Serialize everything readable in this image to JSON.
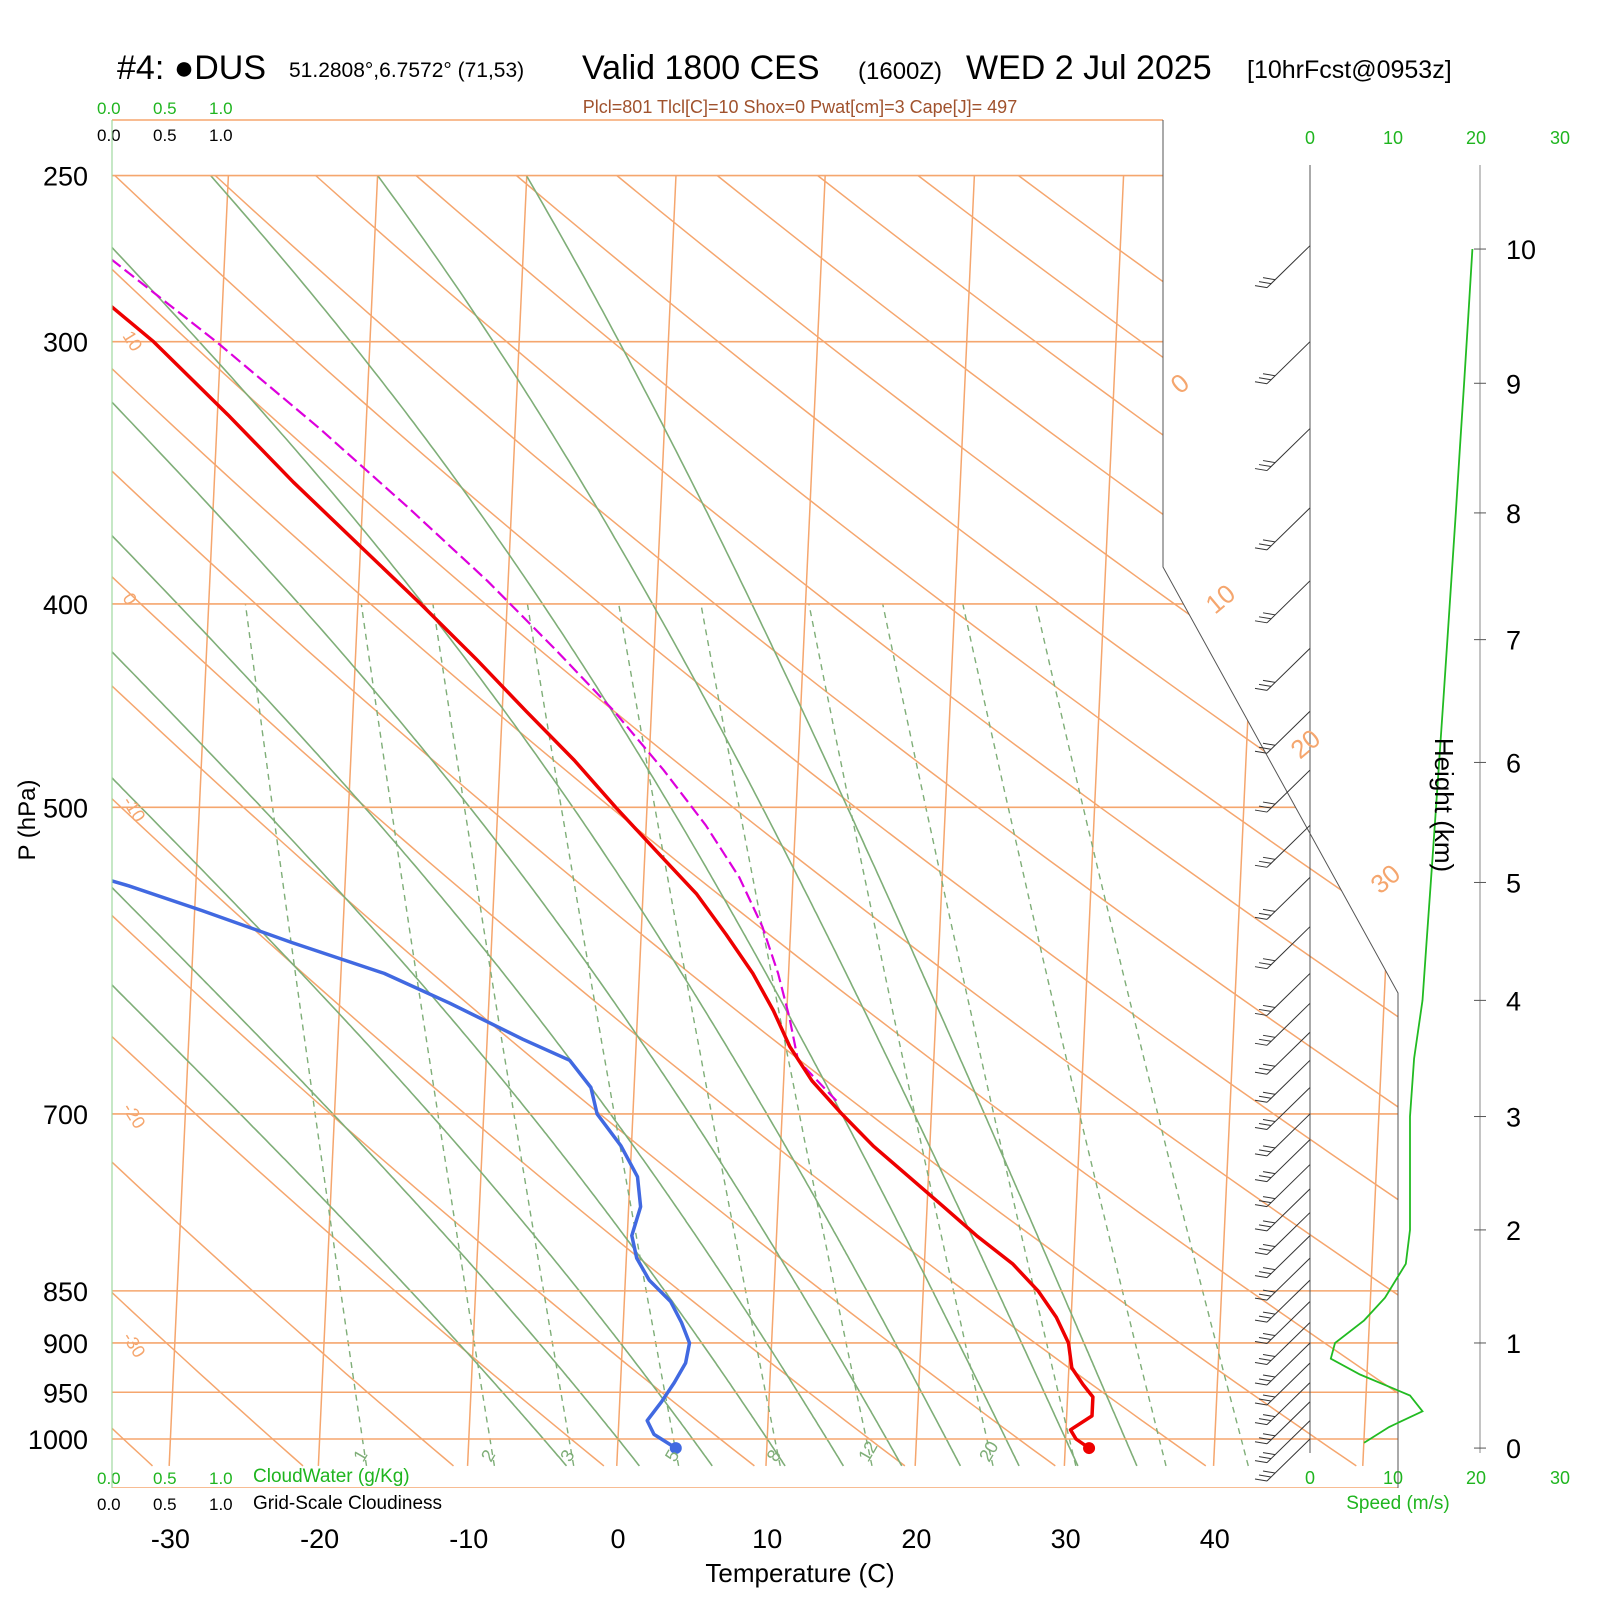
{
  "header": {
    "station": "#4: ●DUS",
    "coords": "51.2808°,6.7572° (71,53)",
    "valid": "Valid 1800 CES",
    "utc": "(1600Z)",
    "date": "WED 2 Jul 2025",
    "forecast": "[10hrFcst@0953z]",
    "indices": "Plcl=801 Tlcl[C]=10 Shox=0 Pwat[cm]=3 Cape[J]= 497"
  },
  "scales": {
    "cloudwater_ticks": [
      "0.0",
      "0.5",
      "1.0"
    ],
    "cloudiness_ticks": [
      "0.0",
      "0.5",
      "1.0"
    ],
    "cloudwater_label": "CloudWater (g/Kg)",
    "cloudiness_label": "Grid-Scale Cloudiness",
    "speed_ticks": [
      "0",
      "10",
      "20",
      "30"
    ],
    "speed_label": "Speed (m/s)"
  },
  "chart_data": {
    "type": "line",
    "subtype": "skew-t log-p sounding",
    "xlabel": "Temperature (C)",
    "ylabel": "P (hPa)",
    "height_label": "Height (km)",
    "xlim": [
      -34,
      36
    ],
    "ylim": [
      1030,
      250
    ],
    "x_ticks": [
      -30,
      -20,
      -10,
      0,
      10,
      20,
      30,
      40
    ],
    "pressure_ticks": [
      250,
      300,
      400,
      500,
      700,
      850,
      900,
      950,
      1000
    ],
    "height_ticks": [
      0,
      1,
      2,
      3,
      4,
      5,
      6,
      7,
      8,
      9,
      10
    ],
    "height_pressures": [
      1010,
      900,
      795,
      702,
      618,
      543,
      476,
      416,
      362,
      314,
      271
    ],
    "isotherm_labels": [
      10,
      0,
      -10,
      -20,
      -30
    ],
    "skewed_isotherm_labels": [
      0,
      10,
      20,
      30
    ],
    "mixing_ratio_labels": [
      1,
      2,
      3,
      5,
      8,
      12,
      20
    ],
    "mixing_ratios": [
      1,
      2,
      3,
      5,
      8,
      12,
      20,
      28,
      40,
      55
    ],
    "dry_adiabats_theta_K": [
      240,
      250,
      260,
      270,
      280,
      290,
      300,
      310,
      320,
      330,
      340,
      350,
      360,
      370,
      380,
      390,
      400,
      410,
      420,
      430,
      440
    ],
    "moist_adiabats_thetaw_C": [
      -5,
      0,
      5,
      10,
      14,
      18,
      22,
      26,
      30,
      34
    ],
    "series": [
      {
        "name": "Temperature",
        "color": "#ee0000",
        "p": [
          1010,
          1000,
          990,
          975,
          955,
          942,
          925,
          900,
          875,
          850,
          825,
          800,
          775,
          750,
          725,
          700,
          675,
          650,
          625,
          600,
          575,
          550,
          525,
          500,
          475,
          450,
          425,
          400,
          375,
          350,
          325,
          300,
          285,
          270
        ],
        "t": [
          31.6,
          30.7,
          30.3,
          31.7,
          31.7,
          31.0,
          30.2,
          29.9,
          29.0,
          27.7,
          25.9,
          23.4,
          21.1,
          18.7,
          16.2,
          14.0,
          11.9,
          10.3,
          9.1,
          7.6,
          5.7,
          3.6,
          0.8,
          -2.1,
          -5.0,
          -8.4,
          -11.9,
          -15.8,
          -20.1,
          -24.7,
          -29.3,
          -34.5,
          -38.4,
          -42.4
        ]
      },
      {
        "name": "Dewpoint",
        "color": "#4169e1",
        "p": [
          1010,
          995,
          980,
          960,
          940,
          920,
          900,
          880,
          860,
          840,
          820,
          800,
          775,
          750,
          725,
          700,
          680,
          660,
          645,
          620,
          600,
          580,
          560,
          545,
          530,
          505,
          480,
          460,
          440,
          420,
          400,
          380,
          360,
          340,
          320,
          300,
          290,
          270
        ],
        "t": [
          3.9,
          2.4,
          1.9,
          2.8,
          3.6,
          4.3,
          4.5,
          3.9,
          3.1,
          1.6,
          0.7,
          0.3,
          0.8,
          0.5,
          -0.7,
          -2.4,
          -2.9,
          -4.4,
          -7.6,
          -12.6,
          -17.1,
          -23.4,
          -29.5,
          -34.5,
          -40.4,
          -48.0,
          -51.1,
          -53.6,
          -55.9,
          -58.3,
          -60.8,
          -63.7,
          -66.8,
          -70.1,
          -73.7,
          -77.6,
          -80.3,
          -84.9
        ]
      },
      {
        "name": "Parcel",
        "color": "#dd00dd",
        "p": [
          690,
          660,
          630,
          600,
          570,
          540,
          510,
          480,
          450,
          420,
          390,
          360,
          330,
          300,
          270
        ],
        "t": [
          13.6,
          10.9,
          10.2,
          9.3,
          8.1,
          6.4,
          4.0,
          1.0,
          -2.5,
          -6.7,
          -11.4,
          -16.9,
          -23.1,
          -30.3,
          -38.8
        ]
      }
    ],
    "surface_markers": {
      "temperature": 31.6,
      "dewpoint": 3.9,
      "p": 1010
    },
    "wind_speed_profile": {
      "h_km": [
        0.05,
        0.2,
        0.35,
        0.5,
        0.7,
        0.85,
        1.0,
        1.2,
        1.4,
        1.7,
        2.0,
        2.5,
        3.0,
        3.5,
        4.0,
        4.5,
        5.0,
        5.5,
        6.0,
        6.5,
        7.0,
        7.5,
        8.0,
        8.5,
        9.0,
        9.5,
        10.0
      ],
      "speed_ms": [
        6.5,
        9.5,
        13.5,
        12.0,
        6.0,
        2.5,
        3.0,
        6.5,
        9.0,
        11.5,
        12.0,
        12.0,
        12.0,
        12.5,
        13.5,
        14.0,
        14.5,
        15.0,
        15.5,
        16.0,
        16.5,
        17.0,
        17.5,
        18.0,
        18.5,
        19.0,
        19.5
      ]
    },
    "wind_barb_levels": [
      1000,
      980,
      960,
      940,
      920,
      900,
      880,
      860,
      840,
      820,
      800,
      780,
      760,
      740,
      720,
      700,
      680,
      660,
      640,
      620,
      600,
      570,
      540,
      510,
      480,
      450,
      420,
      390,
      360,
      330,
      300,
      270
    ]
  }
}
